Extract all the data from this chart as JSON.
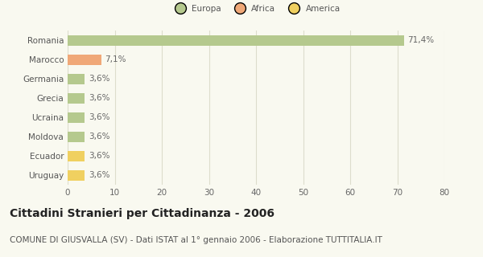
{
  "categories": [
    "Romania",
    "Marocco",
    "Germania",
    "Grecia",
    "Ucraina",
    "Moldova",
    "Ecuador",
    "Uruguay"
  ],
  "values": [
    71.4,
    7.1,
    3.6,
    3.6,
    3.6,
    3.6,
    3.6,
    3.6
  ],
  "labels": [
    "71,4%",
    "7,1%",
    "3,6%",
    "3,6%",
    "3,6%",
    "3,6%",
    "3,6%",
    "3,6%"
  ],
  "colors": [
    "#b5c98e",
    "#f0a878",
    "#b5c98e",
    "#b5c98e",
    "#b5c98e",
    "#b5c98e",
    "#f0d060",
    "#f0d060"
  ],
  "legend": [
    {
      "label": "Europa",
      "color": "#b5c98e"
    },
    {
      "label": "Africa",
      "color": "#f0a878"
    },
    {
      "label": "America",
      "color": "#f0d060"
    }
  ],
  "xlim": [
    0,
    80
  ],
  "xticks": [
    0,
    10,
    20,
    30,
    40,
    50,
    60,
    70,
    80
  ],
  "title": "Cittadini Stranieri per Cittadinanza - 2006",
  "subtitle": "COMUNE DI GIUSVALLA (SV) - Dati ISTAT al 1° gennaio 2006 - Elaborazione TUTTITALIA.IT",
  "bg_color": "#f9f9f0",
  "grid_color": "#ddddcc",
  "bar_height": 0.55,
  "label_fontsize": 7.5,
  "tick_label_fontsize": 7.5,
  "title_fontsize": 10,
  "subtitle_fontsize": 7.5
}
